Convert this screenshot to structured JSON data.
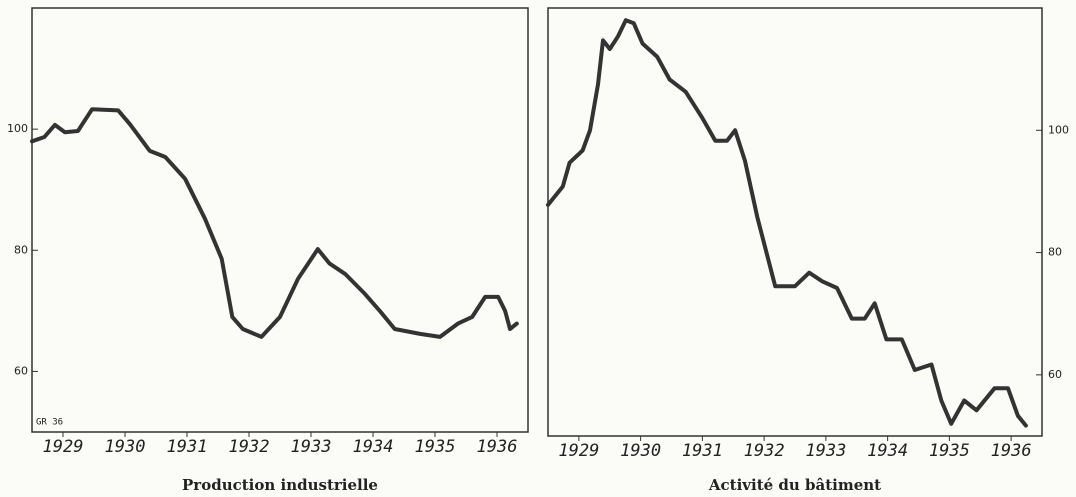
{
  "chart_data": [
    {
      "type": "line",
      "title": "Production industrielle",
      "annotation": "GR 36",
      "y_axis_side": "left",
      "color": "#333333",
      "x": [
        1929.0,
        1929.2,
        1929.37,
        1929.53,
        1929.74,
        1929.97,
        1930.39,
        1930.58,
        1930.9,
        1931.15,
        1931.47,
        1931.79,
        1932.06,
        1932.23,
        1932.4,
        1932.7,
        1933.0,
        1933.29,
        1933.61,
        1933.8,
        1934.05,
        1934.37,
        1934.61,
        1934.85,
        1935.26,
        1935.58,
        1935.87,
        1936.1,
        1936.31,
        1936.52,
        1936.63,
        1936.71,
        1936.82
      ],
      "values": [
        98,
        98.7,
        100.7,
        99.5,
        99.7,
        103.3,
        103.1,
        100.8,
        96.4,
        95.4,
        91.8,
        85.2,
        78.6,
        69,
        67,
        65.7,
        69,
        75.3,
        80.2,
        77.8,
        76.1,
        72.8,
        70,
        67,
        66.2,
        65.7,
        67.9,
        69,
        72.3,
        72.3,
        70,
        67,
        67.9
      ],
      "xlim": [
        1929,
        1937
      ],
      "ylim": [
        50,
        120
      ],
      "yticks": [
        60,
        80,
        100
      ],
      "xticks": [
        {
          "value": 1929.5,
          "label": "1929"
        },
        {
          "value": 1930.5,
          "label": "1930"
        },
        {
          "value": 1931.5,
          "label": "1931"
        },
        {
          "value": 1932.5,
          "label": "1932"
        },
        {
          "value": 1933.5,
          "label": "1933"
        },
        {
          "value": 1934.5,
          "label": "1934"
        },
        {
          "value": 1935.5,
          "label": "1935"
        },
        {
          "value": 1936.5,
          "label": "1936"
        }
      ]
    },
    {
      "type": "line",
      "title": "Activité du bâtiment",
      "y_axis_side": "right",
      "color": "#333333",
      "x": [
        1929.0,
        1929.24,
        1929.35,
        1929.56,
        1929.68,
        1929.81,
        1929.89,
        1930.0,
        1930.13,
        1930.26,
        1930.39,
        1930.53,
        1930.77,
        1930.97,
        1931.23,
        1931.5,
        1931.71,
        1931.9,
        1932.03,
        1932.19,
        1932.39,
        1932.68,
        1933.0,
        1933.23,
        1933.44,
        1933.68,
        1933.92,
        1934.13,
        1934.29,
        1934.48,
        1934.73,
        1934.94,
        1935.21,
        1935.37,
        1935.53,
        1935.74,
        1935.94,
        1936.23,
        1936.45,
        1936.61,
        1936.74
      ],
      "values": [
        87.8,
        90.8,
        94.7,
        96.7,
        100,
        107.5,
        114.7,
        113.3,
        115.3,
        118,
        117.5,
        114.2,
        112,
        108.3,
        106.3,
        102,
        98.3,
        98.3,
        100,
        95,
        85.8,
        74.5,
        74.5,
        76.7,
        75.3,
        74.2,
        69.2,
        69.2,
        71.7,
        65.8,
        65.8,
        60.8,
        61.7,
        55.8,
        52,
        55.8,
        54.2,
        57.8,
        57.8,
        53.3,
        51.7
      ],
      "xlim": [
        1929,
        1937
      ],
      "ylim": [
        50,
        120
      ],
      "yticks": [
        60,
        80,
        100
      ],
      "xticks": [
        {
          "value": 1929.5,
          "label": "1929"
        },
        {
          "value": 1930.5,
          "label": "1930"
        },
        {
          "value": 1931.5,
          "label": "1931"
        },
        {
          "value": 1932.5,
          "label": "1932"
        },
        {
          "value": 1933.5,
          "label": "1933"
        },
        {
          "value": 1934.5,
          "label": "1934"
        },
        {
          "value": 1935.5,
          "label": "1935"
        },
        {
          "value": 1936.5,
          "label": "1936"
        }
      ]
    }
  ]
}
